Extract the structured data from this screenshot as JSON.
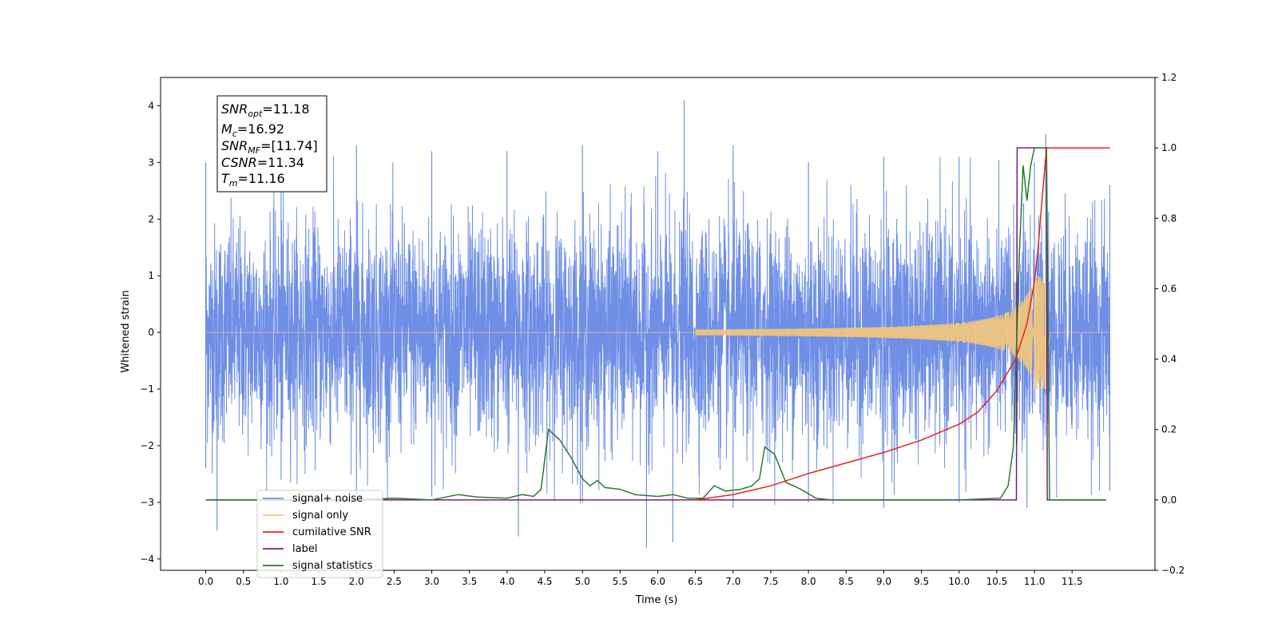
{
  "chart_data": {
    "type": "line",
    "title": "",
    "xlabel": "Time (s)",
    "ylabel": "Whitened strain",
    "y2label": "",
    "xlim": [
      -0.6,
      12.6
    ],
    "ylim": [
      -4.2,
      4.5
    ],
    "y2lim": [
      -0.2,
      1.2
    ],
    "x_ticks": [
      "0.0",
      "0.5",
      "1.0",
      "1.5",
      "2.0",
      "2.5",
      "3.0",
      "3.5",
      "4.0",
      "4.5",
      "5.0",
      "5.5",
      "6.0",
      "6.5",
      "7.0",
      "7.5",
      "8.0",
      "8.5",
      "9.0",
      "9.5",
      "10.0",
      "10.5",
      "11.0",
      "11.5"
    ],
    "y_ticks": [
      "4",
      "3",
      "2",
      "1",
      "0",
      "−1",
      "−2",
      "−3",
      "−4"
    ],
    "y2_ticks": [
      "1.2",
      "1.0",
      "0.8",
      "0.6",
      "0.4",
      "0.2",
      "0.0",
      "−0.2"
    ],
    "grid": false,
    "legend_position": "lower-left",
    "info_box": {
      "snr_opt_main": "SNR",
      "snr_opt_sub": "opt",
      "snr_opt_val": "=11.18",
      "mc_main": "M",
      "mc_sub": "c",
      "mc_val": "=16.92",
      "snr_mf_main": "SNR",
      "snr_mf_sub": "MF",
      "snr_mf_val": "=[11.74]",
      "csnr_main": "CSNR",
      "csnr_val": "=11.34",
      "tm_main": "T",
      "tm_sub": "m",
      "tm_val": "=11.16"
    },
    "series": [
      {
        "name": "signal+ noise",
        "axis": "left",
        "color": "#6f8fe6",
        "description_of_values": "whitened strain noise, approx. range -3.6 to 4.1, spanning 0.0–12.0 s",
        "envelope_upper": [
          [
            0.0,
            3.0
          ],
          [
            1.0,
            3.0
          ],
          [
            2.0,
            3.3
          ],
          [
            3.0,
            3.2
          ],
          [
            4.0,
            3.2
          ],
          [
            5.0,
            3.3
          ],
          [
            6.0,
            3.2
          ],
          [
            6.35,
            4.1
          ],
          [
            7.0,
            3.3
          ],
          [
            8.0,
            3.0
          ],
          [
            9.0,
            3.1
          ],
          [
            10.0,
            3.1
          ],
          [
            11.0,
            3.0
          ],
          [
            11.15,
            3.5
          ],
          [
            12.0,
            2.6
          ]
        ],
        "envelope_lower": [
          [
            0.0,
            -2.4
          ],
          [
            0.15,
            -3.5
          ],
          [
            1.0,
            -2.6
          ],
          [
            2.0,
            -3.0
          ],
          [
            3.0,
            -2.9
          ],
          [
            4.15,
            -3.6
          ],
          [
            5.0,
            -3.0
          ],
          [
            5.85,
            -3.8
          ],
          [
            6.2,
            -3.7
          ],
          [
            7.0,
            -3.1
          ],
          [
            8.0,
            -3.0
          ],
          [
            9.0,
            -3.1
          ],
          [
            10.0,
            -3.0
          ],
          [
            10.9,
            -3.1
          ],
          [
            12.0,
            -2.8
          ]
        ]
      },
      {
        "name": "signal only",
        "axis": "left",
        "color": "#f5c77a",
        "chirp_start": 6.5,
        "chirp_merger": 11.16,
        "peak_amplitude": 1.0,
        "start_amplitude": 0.05
      },
      {
        "name": "cumilative SNR",
        "axis": "right",
        "color": "#e8221b",
        "points": [
          [
            6.5,
            0.0
          ],
          [
            7.0,
            0.015
          ],
          [
            7.5,
            0.04
          ],
          [
            8.0,
            0.075
          ],
          [
            8.5,
            0.105
          ],
          [
            9.0,
            0.135
          ],
          [
            9.5,
            0.17
          ],
          [
            10.0,
            0.215
          ],
          [
            10.25,
            0.25
          ],
          [
            10.5,
            0.31
          ],
          [
            10.75,
            0.4
          ],
          [
            10.9,
            0.5
          ],
          [
            11.0,
            0.62
          ],
          [
            11.05,
            0.72
          ],
          [
            11.1,
            0.85
          ],
          [
            11.16,
            1.0
          ],
          [
            12.0,
            1.0
          ]
        ]
      },
      {
        "name": "label",
        "axis": "right",
        "color": "#7b1c80",
        "points": [
          [
            0.0,
            0.0
          ],
          [
            10.76,
            0.0
          ],
          [
            10.77,
            1.0
          ],
          [
            11.16,
            1.0
          ],
          [
            11.17,
            0.0
          ],
          [
            11.95,
            0.0
          ]
        ]
      },
      {
        "name": "signal only",
        "axis": "right",
        "color": "#b0b0b0",
        "hidden": true
      },
      {
        "name": "signal statistics",
        "axis": "right",
        "color": "#2a7a2a",
        "points": [
          [
            0.0,
            0.0
          ],
          [
            2.0,
            0.0
          ],
          [
            2.5,
            0.005
          ],
          [
            3.0,
            0.0
          ],
          [
            3.35,
            0.015
          ],
          [
            3.6,
            0.008
          ],
          [
            4.0,
            0.005
          ],
          [
            4.2,
            0.015
          ],
          [
            4.35,
            0.01
          ],
          [
            4.45,
            0.03
          ],
          [
            4.55,
            0.2
          ],
          [
            4.7,
            0.17
          ],
          [
            4.85,
            0.12
          ],
          [
            5.0,
            0.06
          ],
          [
            5.1,
            0.04
          ],
          [
            5.2,
            0.055
          ],
          [
            5.3,
            0.035
          ],
          [
            5.5,
            0.03
          ],
          [
            5.7,
            0.015
          ],
          [
            6.0,
            0.01
          ],
          [
            6.2,
            0.015
          ],
          [
            6.4,
            0.005
          ],
          [
            6.6,
            0.005
          ],
          [
            6.75,
            0.04
          ],
          [
            6.9,
            0.025
          ],
          [
            7.1,
            0.03
          ],
          [
            7.25,
            0.04
          ],
          [
            7.35,
            0.06
          ],
          [
            7.42,
            0.15
          ],
          [
            7.55,
            0.13
          ],
          [
            7.7,
            0.05
          ],
          [
            7.9,
            0.03
          ],
          [
            8.1,
            0.005
          ],
          [
            8.3,
            0.0
          ],
          [
            10.0,
            0.0
          ],
          [
            10.55,
            0.005
          ],
          [
            10.65,
            0.04
          ],
          [
            10.72,
            0.15
          ],
          [
            10.8,
            0.7
          ],
          [
            10.85,
            0.95
          ],
          [
            10.9,
            0.85
          ],
          [
            10.95,
            0.95
          ],
          [
            11.0,
            1.0
          ],
          [
            11.16,
            1.0
          ],
          [
            11.2,
            0.0
          ],
          [
            11.95,
            0.0
          ]
        ]
      }
    ]
  }
}
